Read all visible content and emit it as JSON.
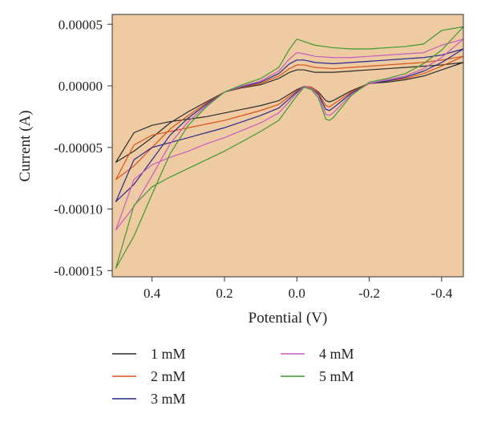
{
  "chart_data": {
    "type": "line",
    "xlabel": "Potential (V)",
    "ylabel": "Current (A)",
    "xlim": [
      0.51,
      -0.46
    ],
    "ylim": [
      -0.000155,
      5.8e-05
    ],
    "xticks": [
      {
        "value": 0.4,
        "label": "0.4"
      },
      {
        "value": 0.2,
        "label": "0.2"
      },
      {
        "value": 0.0,
        "label": "0.0"
      },
      {
        "value": -0.2,
        "label": "-0.2"
      },
      {
        "value": -0.4,
        "label": "-0.4"
      }
    ],
    "yticks": [
      {
        "value": 5e-05,
        "label": "0.00005"
      },
      {
        "value": 0.0,
        "label": "0.00000"
      },
      {
        "value": -5e-05,
        "label": "-0.00005"
      },
      {
        "value": -0.0001,
        "label": "-0.00010"
      },
      {
        "value": -0.00015,
        "label": "-0.00015"
      }
    ],
    "background": "#EECBA3",
    "grid": false,
    "legend_position": "bottom",
    "series": [
      {
        "name": "1 mM",
        "color": "#2b2b2b",
        "x": [
          0.5,
          0.45,
          0.4,
          0.35,
          0.3,
          0.25,
          0.2,
          0.15,
          0.1,
          0.05,
          0.02,
          0.0,
          -0.02,
          -0.05,
          -0.1,
          -0.15,
          -0.2,
          -0.25,
          -0.3,
          -0.35,
          -0.4,
          -0.46,
          -0.4,
          -0.35,
          -0.3,
          -0.25,
          -0.2,
          -0.15,
          -0.1,
          -0.09,
          -0.08,
          -0.06,
          -0.04,
          -0.02,
          0.0,
          0.05,
          0.1,
          0.15,
          0.2,
          0.25,
          0.3,
          0.35,
          0.4,
          0.45,
          0.5
        ],
        "y": [
          -6.2e-05,
          -5.3e-05,
          -4.2e-05,
          -3e-05,
          -2.1e-05,
          -1.3e-05,
          -5e-06,
          -1.5e-06,
          1e-06,
          6e-06,
          1.1e-05,
          1.3e-05,
          1.3e-05,
          1.1e-05,
          1.1e-05,
          1.2e-05,
          1.3e-05,
          1.4e-05,
          1.5e-05,
          1.6e-05,
          1.7e-05,
          1.9e-05,
          1.3e-05,
          8e-06,
          5e-06,
          3e-06,
          2e-06,
          -4e-06,
          -1.2e-05,
          -1.3e-05,
          -1.2e-05,
          -5e-06,
          -1e-06,
          -5e-07,
          -3e-06,
          -1.2e-05,
          -1.6e-05,
          -1.9e-05,
          -2.2e-05,
          -2.5e-05,
          -2.7e-05,
          -2.9e-05,
          -3.2e-05,
          -3.8e-05,
          -6.2e-05
        ]
      },
      {
        "name": "2 mM",
        "color": "#d9541c",
        "x": [
          0.5,
          0.45,
          0.4,
          0.35,
          0.3,
          0.25,
          0.2,
          0.15,
          0.1,
          0.05,
          0.02,
          0.0,
          -0.02,
          -0.05,
          -0.1,
          -0.15,
          -0.2,
          -0.25,
          -0.3,
          -0.35,
          -0.4,
          -0.46,
          -0.4,
          -0.35,
          -0.3,
          -0.25,
          -0.2,
          -0.15,
          -0.1,
          -0.09,
          -0.08,
          -0.06,
          -0.04,
          -0.02,
          0.0,
          0.05,
          0.1,
          0.15,
          0.2,
          0.25,
          0.3,
          0.35,
          0.4,
          0.45,
          0.5
        ],
        "y": [
          -7.6e-05,
          -6.5e-05,
          -5e-05,
          -3.5e-05,
          -2.4e-05,
          -1.4e-05,
          -5e-06,
          -1e-06,
          2e-06,
          8e-06,
          1.4e-05,
          1.7e-05,
          1.7e-05,
          1.5e-05,
          1.4e-05,
          1.5e-05,
          1.6e-05,
          1.7e-05,
          1.8e-05,
          1.9e-05,
          2.1e-05,
          2.4e-05,
          1.6e-05,
          1e-05,
          6e-06,
          4e-06,
          2e-06,
          -5e-06,
          -1.5e-05,
          -1.7e-05,
          -1.6e-05,
          -6e-06,
          -1e-06,
          -5e-07,
          -4e-06,
          -1.5e-05,
          -2e-05,
          -2.4e-05,
          -2.8e-05,
          -3.1e-05,
          -3.4e-05,
          -3.7e-05,
          -4e-05,
          -4.8e-05,
          -7.6e-05
        ]
      },
      {
        "name": "3 mM",
        "color": "#2a2a8c",
        "x": [
          0.5,
          0.45,
          0.4,
          0.35,
          0.3,
          0.25,
          0.2,
          0.15,
          0.1,
          0.05,
          0.02,
          0.0,
          -0.02,
          -0.05,
          -0.1,
          -0.15,
          -0.2,
          -0.25,
          -0.3,
          -0.35,
          -0.4,
          -0.46,
          -0.4,
          -0.35,
          -0.3,
          -0.25,
          -0.2,
          -0.15,
          -0.1,
          -0.09,
          -0.08,
          -0.06,
          -0.04,
          -0.02,
          0.0,
          0.05,
          0.1,
          0.15,
          0.2,
          0.25,
          0.3,
          0.35,
          0.4,
          0.45,
          0.5
        ],
        "y": [
          -9.4e-05,
          -8e-05,
          -6e-05,
          -4e-05,
          -2.6e-05,
          -1.5e-05,
          -5e-06,
          -5e-07,
          3e-06,
          1e-05,
          1.8e-05,
          2.1e-05,
          2.1e-05,
          1.9e-05,
          1.8e-05,
          1.9e-05,
          2e-05,
          2.1e-05,
          2.2e-05,
          2.3e-05,
          2.5e-05,
          3e-05,
          1.9e-05,
          1.2e-05,
          7e-06,
          4e-06,
          2e-06,
          -6e-06,
          -1.8e-05,
          -2e-05,
          -1.9e-05,
          -7e-06,
          -2e-06,
          -5e-07,
          -5e-06,
          -1.8e-05,
          -2.4e-05,
          -2.9e-05,
          -3.4e-05,
          -3.8e-05,
          -4.2e-05,
          -4.6e-05,
          -5e-05,
          -6e-05,
          -9.4e-05
        ]
      },
      {
        "name": "4 mM",
        "color": "#c75cbf",
        "x": [
          0.5,
          0.45,
          0.4,
          0.35,
          0.3,
          0.25,
          0.2,
          0.15,
          0.1,
          0.05,
          0.02,
          0.0,
          -0.02,
          -0.05,
          -0.1,
          -0.15,
          -0.2,
          -0.25,
          -0.3,
          -0.35,
          -0.4,
          -0.46,
          -0.4,
          -0.35,
          -0.3,
          -0.25,
          -0.2,
          -0.15,
          -0.1,
          -0.09,
          -0.08,
          -0.06,
          -0.04,
          -0.02,
          0.0,
          0.05,
          0.1,
          0.15,
          0.2,
          0.25,
          0.3,
          0.35,
          0.4,
          0.45,
          0.5
        ],
        "y": [
          -0.000117,
          -9.8e-05,
          -7.3e-05,
          -4.7e-05,
          -2.9e-05,
          -1.6e-05,
          -5e-06,
          0.0,
          4e-06,
          1.2e-05,
          2.2e-05,
          2.7e-05,
          2.6e-05,
          2.4e-05,
          2.3e-05,
          2.3e-05,
          2.4e-05,
          2.5e-05,
          2.6e-05,
          2.7e-05,
          3.3e-05,
          3.8e-05,
          2.3e-05,
          1.4e-05,
          8e-06,
          5e-06,
          2e-06,
          -7e-06,
          -2.2e-05,
          -2.4e-05,
          -2.3e-05,
          -8e-06,
          -2e-06,
          -5e-07,
          -6e-06,
          -2.2e-05,
          -3e-05,
          -3.6e-05,
          -4.2e-05,
          -4.7e-05,
          -5.3e-05,
          -5.8e-05,
          -6.4e-05,
          -7.6e-05,
          -0.000117
        ]
      },
      {
        "name": "5 mM",
        "color": "#3f9a2e",
        "x": [
          0.5,
          0.45,
          0.4,
          0.35,
          0.3,
          0.25,
          0.2,
          0.15,
          0.1,
          0.05,
          0.02,
          0.0,
          -0.02,
          -0.05,
          -0.1,
          -0.15,
          -0.2,
          -0.25,
          -0.3,
          -0.35,
          -0.4,
          -0.46,
          -0.4,
          -0.35,
          -0.3,
          -0.25,
          -0.2,
          -0.15,
          -0.1,
          -0.09,
          -0.08,
          -0.06,
          -0.04,
          -0.02,
          0.0,
          0.05,
          0.1,
          0.15,
          0.2,
          0.25,
          0.3,
          0.35,
          0.4,
          0.45,
          0.5
        ],
        "y": [
          -0.000148,
          -0.000122,
          -8.8e-05,
          -5.5e-05,
          -3.2e-05,
          -1.7e-05,
          -5e-06,
          1e-06,
          6e-06,
          1.5e-05,
          3e-05,
          3.8e-05,
          3.6e-05,
          3.3e-05,
          3.1e-05,
          3e-05,
          3e-05,
          3.1e-05,
          3.2e-05,
          3.4e-05,
          4.5e-05,
          4.8e-05,
          2.9e-05,
          1.8e-05,
          1e-05,
          6e-06,
          3e-06,
          -8e-06,
          -2.6e-05,
          -2.8e-05,
          -2.7e-05,
          -1e-05,
          -3e-06,
          -1e-06,
          -8e-06,
          -2.8e-05,
          -3.7e-05,
          -4.5e-05,
          -5.3e-05,
          -6e-05,
          -6.7e-05,
          -7.4e-05,
          -8.2e-05,
          -9.7e-05,
          -0.000148
        ]
      }
    ]
  }
}
